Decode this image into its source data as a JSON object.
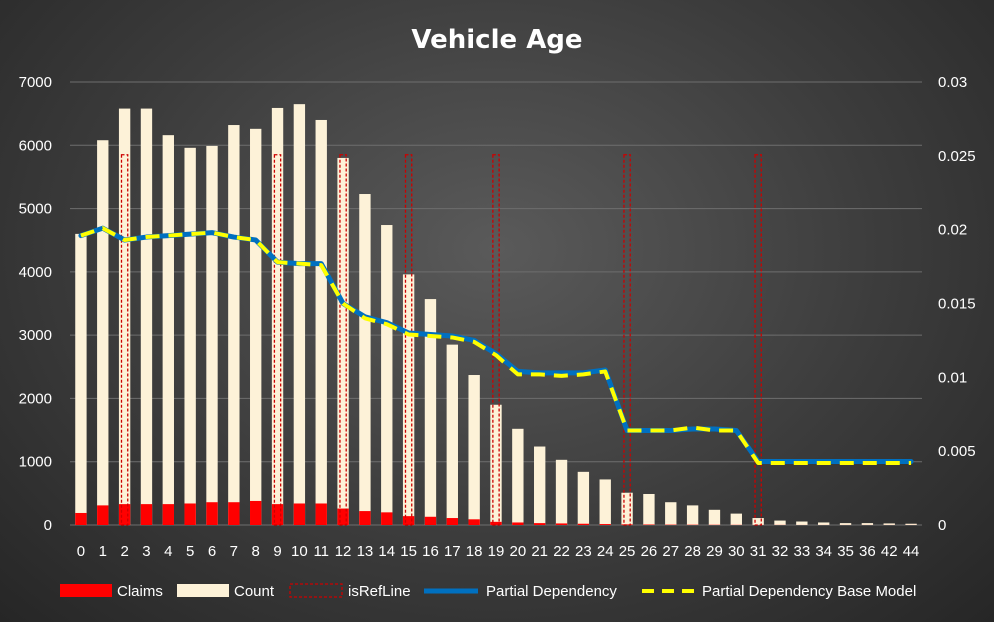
{
  "chart_data": {
    "type": "bar",
    "title": "Vehicle Age",
    "xlabel": "",
    "ylabel": "",
    "ylim": [
      0,
      7000
    ],
    "y2lim": [
      0,
      0.03
    ],
    "yticks": [
      "0",
      "1000",
      "2000",
      "3000",
      "4000",
      "5000",
      "6000",
      "7000"
    ],
    "y2ticks": [
      "0",
      "0.005",
      "0.01",
      "0.015",
      "0.02",
      "0.025",
      "0.03"
    ],
    "grid": true,
    "legend_position": "bottom",
    "categories": [
      "0",
      "1",
      "2",
      "3",
      "4",
      "5",
      "6",
      "7",
      "8",
      "9",
      "10",
      "11",
      "12",
      "13",
      "14",
      "15",
      "16",
      "17",
      "18",
      "19",
      "20",
      "21",
      "22",
      "23",
      "24",
      "25",
      "26",
      "27",
      "28",
      "29",
      "30",
      "31",
      "32",
      "33",
      "34",
      "35",
      "36",
      "42",
      "44"
    ],
    "series": [
      {
        "name": "Claims",
        "axis": "left",
        "kind": "bar",
        "color": "#ff0000",
        "values": [
          190,
          310,
          330,
          330,
          330,
          340,
          360,
          360,
          380,
          330,
          340,
          340,
          260,
          220,
          200,
          140,
          130,
          110,
          90,
          50,
          40,
          30,
          25,
          20,
          15,
          10,
          8,
          6,
          5,
          4,
          3,
          2,
          2,
          1,
          1,
          1,
          1,
          1,
          1
        ]
      },
      {
        "name": "Count",
        "axis": "left",
        "kind": "bar",
        "color": "#fdf2d8",
        "values": [
          4600,
          6080,
          6580,
          6580,
          6160,
          5960,
          5990,
          6320,
          6260,
          6590,
          6650,
          6400,
          5800,
          5230,
          4740,
          3960,
          3570,
          2850,
          2370,
          1900,
          1520,
          1240,
          1030,
          840,
          720,
          510,
          490,
          360,
          310,
          240,
          180,
          110,
          70,
          55,
          40,
          30,
          30,
          25,
          20
        ]
      },
      {
        "name": "isRefLine",
        "axis": "left",
        "kind": "bar-dashed",
        "color": "#cc0000",
        "values": [
          0,
          0,
          5850,
          0,
          0,
          0,
          0,
          0,
          0,
          5850,
          0,
          0,
          5850,
          0,
          0,
          5850,
          0,
          0,
          0,
          5850,
          0,
          0,
          0,
          0,
          0,
          5850,
          0,
          0,
          0,
          0,
          0,
          5850,
          0,
          0,
          0,
          0,
          0,
          0,
          0
        ]
      },
      {
        "name": "Partial Dependency",
        "axis": "right",
        "kind": "line",
        "color": "#0070c0",
        "values": [
          0.0196,
          0.0201,
          0.0193,
          0.0195,
          0.0196,
          0.0197,
          0.0198,
          0.0195,
          0.0193,
          0.0178,
          0.0177,
          0.0177,
          0.015,
          0.0141,
          0.0137,
          0.013,
          0.0129,
          0.0128,
          0.0125,
          0.0116,
          0.0104,
          0.0103,
          0.0103,
          0.0103,
          0.0105,
          0.0064,
          0.0064,
          0.0064,
          0.0065,
          0.0065,
          0.0064,
          0.0043,
          0.0043,
          0.0043,
          0.0043,
          0.0043,
          0.0043,
          0.0043,
          0.0043
        ]
      },
      {
        "name": "Partial Dependency Base Model",
        "axis": "right",
        "kind": "line-dashed",
        "color": "#ffff00",
        "values": [
          0.0196,
          0.0201,
          0.0193,
          0.0195,
          0.0196,
          0.0197,
          0.0198,
          0.0195,
          0.0193,
          0.0178,
          0.0177,
          0.0176,
          0.015,
          0.014,
          0.0136,
          0.0129,
          0.0128,
          0.0127,
          0.0124,
          0.0115,
          0.0102,
          0.0102,
          0.0101,
          0.0102,
          0.0104,
          0.0064,
          0.0064,
          0.0064,
          0.0066,
          0.0064,
          0.0064,
          0.0042,
          0.0042,
          0.0042,
          0.0042,
          0.0042,
          0.0042,
          0.0042,
          0.0042
        ]
      }
    ]
  }
}
